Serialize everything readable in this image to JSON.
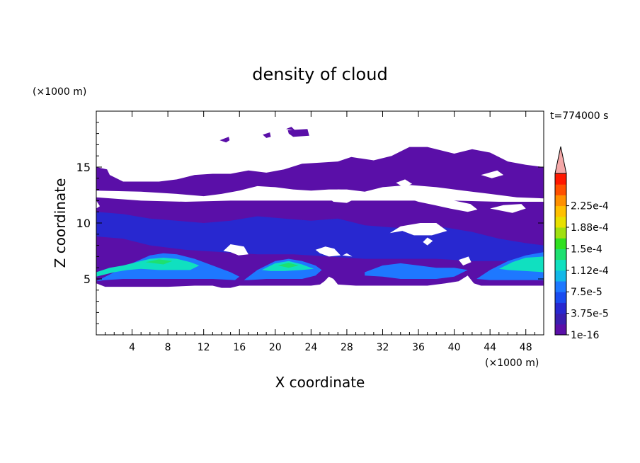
{
  "chart_data": {
    "type": "heatmap",
    "title": "density of cloud",
    "xlabel": "X coordinate",
    "ylabel": "Z coordinate",
    "x_unit": "(×1000 m)",
    "y_unit": "(×1000 m)",
    "time_label": "t=774000 s",
    "xlim": [
      0,
      50
    ],
    "ylim": [
      0,
      20
    ],
    "x_ticks": [
      4,
      8,
      12,
      16,
      20,
      24,
      28,
      32,
      36,
      40,
      44,
      48
    ],
    "y_ticks": [
      5,
      10,
      15
    ],
    "colorbar": {
      "labels": [
        "1e-16",
        "3.75e-5",
        "7.5e-5",
        "1.12e-4",
        "1.5e-4",
        "1.88e-4",
        "2.25e-4"
      ],
      "colors": [
        "#5a0fa8",
        "#3a1fb0",
        "#2828d0",
        "#1a4cf0",
        "#1e78ff",
        "#12b8e8",
        "#10e0c0",
        "#1ee070",
        "#30e020",
        "#a0e010",
        "#e8e000",
        "#ffc000",
        "#ff9000",
        "#ff5000",
        "#ff1800"
      ],
      "extend_color": "#f4a8a8"
    },
    "regions": [
      {
        "level": 0,
        "color": "#5a0fa8",
        "points": [
          [
            0,
            4.6
          ],
          [
            1,
            4.3
          ],
          [
            2.5,
            4.3
          ],
          [
            5,
            4.3
          ],
          [
            8,
            4.3
          ],
          [
            11,
            4.4
          ],
          [
            13,
            4.4
          ],
          [
            14,
            4.2
          ],
          [
            15,
            4.2
          ],
          [
            16,
            4.4
          ],
          [
            18,
            4.4
          ],
          [
            20,
            4.4
          ],
          [
            22,
            4.4
          ],
          [
            24,
            4.4
          ],
          [
            25,
            4.5
          ],
          [
            25.5,
            4.8
          ],
          [
            26,
            5.2
          ],
          [
            26.5,
            5
          ],
          [
            27,
            4.5
          ],
          [
            29,
            4.4
          ],
          [
            31,
            4.4
          ],
          [
            33,
            4.4
          ],
          [
            35,
            4.4
          ],
          [
            37,
            4.4
          ],
          [
            39,
            4.6
          ],
          [
            40.5,
            4.8
          ],
          [
            41.5,
            5.3
          ],
          [
            42.2,
            4.6
          ],
          [
            43,
            4.4
          ],
          [
            45,
            4.4
          ],
          [
            47,
            4.4
          ],
          [
            50,
            4.4
          ],
          [
            50,
            15
          ],
          [
            48,
            15.2
          ],
          [
            46,
            15.5
          ],
          [
            44,
            16.3
          ],
          [
            42,
            16.6
          ],
          [
            40,
            16.2
          ],
          [
            38,
            16.6
          ],
          [
            37,
            16.8
          ],
          [
            35,
            16.8
          ],
          [
            34,
            16.4
          ],
          [
            33,
            16
          ],
          [
            31,
            15.6
          ],
          [
            28.5,
            15.9
          ],
          [
            27,
            15.5
          ],
          [
            25,
            15.4
          ],
          [
            23,
            15.3
          ],
          [
            21,
            14.8
          ],
          [
            19,
            14.5
          ],
          [
            17,
            14.7
          ],
          [
            15,
            14.4
          ],
          [
            13,
            14.4
          ],
          [
            11,
            14.3
          ],
          [
            9,
            13.9
          ],
          [
            7,
            13.7
          ],
          [
            5,
            13.7
          ],
          [
            3,
            13.7
          ],
          [
            1.5,
            14.3
          ],
          [
            1.2,
            14.8
          ],
          [
            0,
            15
          ],
          [
            0,
            12
          ],
          [
            0.4,
            11.5
          ],
          [
            0,
            11.3
          ]
        ]
      },
      {
        "level": 2,
        "color": "#2828d0",
        "points": [
          [
            0,
            11
          ],
          [
            3,
            10.8
          ],
          [
            6,
            10.4
          ],
          [
            9,
            10.2
          ],
          [
            12,
            10
          ],
          [
            15,
            10.2
          ],
          [
            18,
            10.6
          ],
          [
            21,
            10.4
          ],
          [
            24,
            10.2
          ],
          [
            27,
            10.4
          ],
          [
            30,
            9.8
          ],
          [
            33,
            9.6
          ],
          [
            36,
            9.4
          ],
          [
            39,
            9.6
          ],
          [
            42,
            9.2
          ],
          [
            45,
            8.6
          ],
          [
            48,
            8.2
          ],
          [
            50,
            8
          ],
          [
            50,
            6.8
          ],
          [
            46,
            6.6
          ],
          [
            42,
            6.6
          ],
          [
            38,
            6.8
          ],
          [
            34,
            6.8
          ],
          [
            30,
            6.8
          ],
          [
            26,
            7
          ],
          [
            22,
            7.2
          ],
          [
            18,
            7.2
          ],
          [
            14,
            7.4
          ],
          [
            10,
            7.6
          ],
          [
            6,
            8
          ],
          [
            3,
            8.6
          ],
          [
            0,
            8.8
          ]
        ]
      },
      {
        "level": 4,
        "color": "#1e78ff",
        "points": [
          [
            0,
            4.8
          ],
          [
            2,
            5.6
          ],
          [
            4,
            6.4
          ],
          [
            6,
            7.1
          ],
          [
            7.5,
            7.3
          ],
          [
            9,
            7.2
          ],
          [
            11,
            6.8
          ],
          [
            13,
            6.2
          ],
          [
            15,
            5.6
          ],
          [
            16,
            5.2
          ],
          [
            15.5,
            4.9
          ],
          [
            13,
            5
          ],
          [
            11,
            5
          ],
          [
            9,
            5
          ],
          [
            7,
            5
          ],
          [
            5,
            5
          ],
          [
            3,
            5
          ],
          [
            1,
            4.9
          ]
        ]
      },
      {
        "level": 4,
        "color": "#1e78ff",
        "points": [
          [
            16.5,
            4.9
          ],
          [
            18,
            5.8
          ],
          [
            20,
            6.6
          ],
          [
            21.5,
            6.8
          ],
          [
            23,
            6.6
          ],
          [
            24.5,
            6.2
          ],
          [
            25.2,
            5.8
          ],
          [
            24.5,
            5.3
          ],
          [
            23,
            5
          ],
          [
            21,
            5
          ],
          [
            19,
            5
          ],
          [
            17,
            4.9
          ]
        ]
      },
      {
        "level": 4,
        "color": "#1e78ff",
        "points": [
          [
            30,
            5.6
          ],
          [
            32,
            6.2
          ],
          [
            34,
            6.4
          ],
          [
            36,
            6.2
          ],
          [
            38,
            6
          ],
          [
            40,
            6
          ],
          [
            41.5,
            5.8
          ],
          [
            40,
            5.2
          ],
          [
            38,
            5
          ],
          [
            36,
            5
          ],
          [
            34,
            5
          ],
          [
            32,
            5.2
          ],
          [
            30,
            5.3
          ]
        ]
      },
      {
        "level": 4,
        "color": "#1e78ff",
        "points": [
          [
            42.5,
            5
          ],
          [
            44,
            5.8
          ],
          [
            46,
            6.6
          ],
          [
            48,
            7.1
          ],
          [
            50,
            7.4
          ],
          [
            50,
            4.9
          ],
          [
            47,
            4.9
          ],
          [
            44,
            4.9
          ]
        ]
      },
      {
        "level": 6,
        "color": "#10e0c0",
        "points": [
          [
            0,
            5.6
          ],
          [
            1.5,
            6
          ],
          [
            3,
            6.2
          ],
          [
            4.5,
            6.5
          ],
          [
            6,
            6.8
          ],
          [
            7.5,
            6.9
          ],
          [
            9,
            6.8
          ],
          [
            10.5,
            6.5
          ],
          [
            11.5,
            6.2
          ],
          [
            10.5,
            5.8
          ],
          [
            9,
            5.8
          ],
          [
            7,
            5.8
          ],
          [
            5,
            5.9
          ],
          [
            3.5,
            5.8
          ],
          [
            2,
            5.6
          ],
          [
            0,
            5.2
          ]
        ]
      },
      {
        "level": 6,
        "color": "#10e0c0",
        "points": [
          [
            18.5,
            5.8
          ],
          [
            20,
            6.4
          ],
          [
            21.5,
            6.6
          ],
          [
            23,
            6.3
          ],
          [
            24.3,
            5.9
          ],
          [
            23,
            5.8
          ],
          [
            21,
            5.7
          ],
          [
            19.5,
            5.7
          ]
        ]
      },
      {
        "level": 6,
        "color": "#10e0c0",
        "points": [
          [
            45,
            5.9
          ],
          [
            46.5,
            6.5
          ],
          [
            48,
            6.9
          ],
          [
            50,
            7
          ],
          [
            50,
            5.6
          ],
          [
            48,
            5.7
          ],
          [
            46,
            5.8
          ]
        ]
      },
      {
        "level": 7,
        "color": "#1ee070",
        "points": [
          [
            5.5,
            6.5
          ],
          [
            7,
            6.75
          ],
          [
            8.5,
            6.6
          ],
          [
            7.5,
            6.3
          ]
        ]
      },
      {
        "level": 7,
        "color": "#1ee070",
        "points": [
          [
            20.3,
            6.2
          ],
          [
            21.5,
            6.45
          ],
          [
            22.6,
            6.2
          ],
          [
            21.5,
            6
          ]
        ]
      }
    ],
    "gaps": [
      {
        "points": [
          [
            0,
            12.9
          ],
          [
            5,
            12.8
          ],
          [
            9,
            12.6
          ],
          [
            12,
            12.4
          ],
          [
            14,
            12.6
          ],
          [
            16,
            12.9
          ],
          [
            18,
            13.3
          ],
          [
            20,
            13.2
          ],
          [
            22,
            13
          ],
          [
            24,
            12.9
          ],
          [
            26,
            13
          ],
          [
            28,
            13
          ],
          [
            30,
            12.8
          ],
          [
            32,
            13.2
          ],
          [
            35,
            13.4
          ],
          [
            38,
            13.2
          ],
          [
            41,
            12.9
          ],
          [
            44,
            12.6
          ],
          [
            47,
            12.3
          ],
          [
            50,
            12.2
          ],
          [
            50,
            11.9
          ],
          [
            45,
            11.9
          ],
          [
            40,
            12
          ],
          [
            35,
            12
          ],
          [
            30,
            12
          ],
          [
            25,
            12
          ],
          [
            20,
            12
          ],
          [
            15,
            12
          ],
          [
            10,
            11.9
          ],
          [
            5,
            12
          ],
          [
            0,
            12.3
          ]
        ]
      },
      {
        "points": [
          [
            25.5,
            12.5
          ],
          [
            27,
            13
          ],
          [
            28.5,
            12.9
          ],
          [
            29,
            12.2
          ],
          [
            28,
            11.8
          ],
          [
            26.5,
            11.9
          ]
        ]
      },
      {
        "points": [
          [
            34.5,
            12.3
          ],
          [
            36,
            12.6
          ],
          [
            37.5,
            12.8
          ],
          [
            39,
            12.4
          ],
          [
            40,
            12
          ],
          [
            41.8,
            11.7
          ],
          [
            42.6,
            11.2
          ],
          [
            41.5,
            11
          ],
          [
            39.5,
            11.3
          ],
          [
            37.8,
            11.6
          ],
          [
            36,
            11.9
          ]
        ]
      },
      {
        "points": [
          [
            44,
            11.3
          ],
          [
            45.5,
            11.6
          ],
          [
            47.5,
            11.7
          ],
          [
            48,
            11.3
          ],
          [
            46.5,
            10.9
          ]
        ]
      },
      {
        "points": [
          [
            43,
            14.3
          ],
          [
            44.8,
            14.7
          ],
          [
            45.5,
            14.3
          ],
          [
            44.2,
            14
          ]
        ]
      },
      {
        "points": [
          [
            33.5,
            13.6
          ],
          [
            34.5,
            13.9
          ],
          [
            35.3,
            13.5
          ],
          [
            34.3,
            13.2
          ]
        ]
      },
      {
        "points": [
          [
            32.8,
            9.1
          ],
          [
            34,
            9.7
          ],
          [
            36.2,
            10
          ],
          [
            38,
            10
          ],
          [
            39.2,
            9.3
          ],
          [
            37.5,
            8.9
          ],
          [
            35.5,
            8.9
          ],
          [
            34.2,
            9.3
          ]
        ]
      },
      {
        "points": [
          [
            36.5,
            8.3
          ],
          [
            37,
            8.7
          ],
          [
            37.6,
            8.4
          ],
          [
            37,
            8
          ]
        ]
      },
      {
        "points": [
          [
            14.2,
            7.5
          ],
          [
            15,
            8.1
          ],
          [
            16.5,
            7.9
          ],
          [
            17,
            7.2
          ],
          [
            15.9,
            7.1
          ],
          [
            15,
            7.4
          ]
        ]
      },
      {
        "points": [
          [
            24.5,
            7.6
          ],
          [
            25.6,
            7.9
          ],
          [
            26.6,
            7.7
          ],
          [
            27.3,
            7.1
          ],
          [
            26,
            7
          ],
          [
            25,
            7.3
          ]
        ]
      },
      {
        "points": [
          [
            27.5,
            7.1
          ],
          [
            28,
            7.3
          ],
          [
            28.6,
            7
          ]
        ]
      },
      {
        "points": [
          [
            40.5,
            6.7
          ],
          [
            41.6,
            7
          ],
          [
            41.9,
            6.5
          ],
          [
            41,
            6.2
          ]
        ]
      }
    ],
    "islands": [
      {
        "points": [
          [
            13.8,
            17.4
          ],
          [
            14.8,
            17.7
          ],
          [
            14.9,
            17.4
          ],
          [
            14.5,
            17.2
          ]
        ]
      },
      {
        "points": [
          [
            18.6,
            17.9
          ],
          [
            19.4,
            18.1
          ],
          [
            19.5,
            17.7
          ],
          [
            19,
            17.6
          ]
        ]
      },
      {
        "points": [
          [
            21.4,
            18.3
          ],
          [
            23.6,
            18.4
          ],
          [
            23.8,
            17.8
          ],
          [
            22,
            17.7
          ],
          [
            21.5,
            18
          ]
        ]
      },
      {
        "points": [
          [
            21.2,
            18.4
          ],
          [
            21.8,
            18.6
          ],
          [
            22.2,
            18.3
          ]
        ]
      }
    ]
  }
}
